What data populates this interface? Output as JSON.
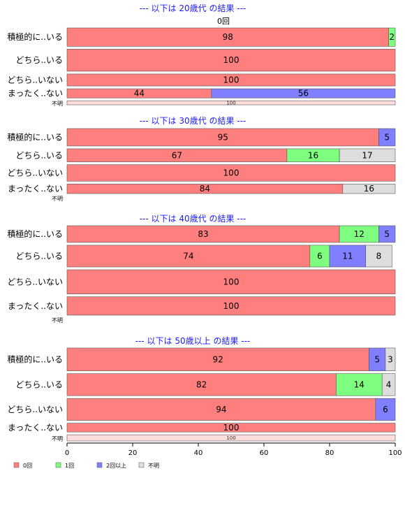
{
  "chart_data": {
    "type": "bar",
    "orientation": "horizontal",
    "stacked": "percent",
    "xlim": [
      0,
      100
    ],
    "x_ticks": [
      "0",
      "20",
      "40",
      "60",
      "80",
      "100"
    ],
    "colors": {
      "0回": "#ff7f7f",
      "1回": "#7fff7f",
      "2回以上": "#7f7fff",
      "不明": "#dddddd"
    },
    "top_label": "0回",
    "legend": {
      "position": "bottom-left",
      "entries": [
        "0回",
        "1回",
        "2回以上",
        "不明"
      ]
    },
    "panels": [
      {
        "title": "--- 以下は 20歳代 の結果 ---",
        "rows": [
          {
            "label": "積極的に..いる",
            "weight": 1.0,
            "values": [
              98,
              2,
              0,
              0
            ]
          },
          {
            "label": "どちら..いる",
            "weight": 1.2,
            "values": [
              100,
              0,
              0,
              0
            ]
          },
          {
            "label": "どちら..いない",
            "weight": 0.65,
            "values": [
              100,
              0,
              0,
              0
            ]
          },
          {
            "label": "まったく..ない",
            "weight": 0.5,
            "values": [
              44,
              0,
              56,
              0
            ]
          },
          {
            "label": "不明",
            "weight": 0.22,
            "small": true,
            "values": [
              100,
              0,
              0,
              0
            ]
          }
        ]
      },
      {
        "title": "--- 以下は 30歳代 の結果 ---",
        "rows": [
          {
            "label": "積極的に..いる",
            "weight": 1.0,
            "values": [
              95,
              0,
              5,
              0
            ]
          },
          {
            "label": "どちら..いる",
            "weight": 0.75,
            "values": [
              67,
              16,
              0,
              17
            ]
          },
          {
            "label": "どちら..いない",
            "weight": 0.95,
            "values": [
              100,
              0,
              0,
              0
            ]
          },
          {
            "label": "まったく..ない",
            "weight": 0.55,
            "values": [
              84,
              0,
              0,
              16
            ]
          },
          {
            "label": "不明",
            "weight": 0.0,
            "small": true,
            "values": []
          }
        ]
      },
      {
        "title": "--- 以下は 40歳代 の結果 ---",
        "rows": [
          {
            "label": "積極的に..いる",
            "weight": 1.0,
            "values": [
              83,
              12,
              5,
              0
            ]
          },
          {
            "label": "どちら..いる",
            "weight": 1.3,
            "values": [
              74,
              6,
              11,
              8
            ]
          },
          {
            "label": "どちら..いない",
            "weight": 1.45,
            "values": [
              100,
              0,
              0,
              0
            ]
          },
          {
            "label": "まったく..ない",
            "weight": 1.1,
            "values": [
              100,
              0,
              0,
              0
            ]
          },
          {
            "label": "不明",
            "weight": 0.0,
            "small": true,
            "values": []
          }
        ]
      },
      {
        "title": "--- 以下は 50歳以上 の結果 ---",
        "rows": [
          {
            "label": "積極的に..いる",
            "weight": 1.3,
            "values": [
              92,
              0,
              5,
              3
            ]
          },
          {
            "label": "どちら..いる",
            "weight": 1.25,
            "values": [
              82,
              14,
              0,
              4
            ]
          },
          {
            "label": "どちら..いない",
            "weight": 1.25,
            "values": [
              94,
              0,
              6,
              0
            ]
          },
          {
            "label": "まったく..ない",
            "weight": 0.5,
            "values": [
              100,
              0,
              0,
              0
            ]
          },
          {
            "label": "不明",
            "weight": 0.35,
            "small": true,
            "values": [
              100,
              0,
              0,
              0
            ]
          }
        ]
      }
    ]
  }
}
